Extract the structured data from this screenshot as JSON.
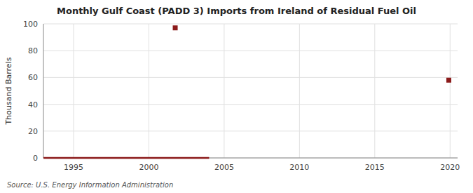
{
  "chart_data": {
    "type": "line",
    "title": "Monthly Gulf Coast (PADD 3) Imports from Ireland of Residual Fuel Oil",
    "y_label": "Thousand Barrels",
    "source": "Source: U.S. Energy Information Administration",
    "xlim": [
      1993.0,
      2020.5
    ],
    "ylim": [
      0,
      100
    ],
    "xticks": [
      1995,
      2000,
      2005,
      2010,
      2015,
      2020
    ],
    "yticks": [
      0,
      20,
      40,
      60,
      80,
      100
    ],
    "grid": true,
    "series": [
      {
        "type": "line",
        "color": "#8b1a1a",
        "line_style": "solid",
        "x": [
          1993.0,
          2004.0
        ],
        "values": [
          0,
          0
        ]
      },
      {
        "type": "scatter",
        "color": "#8b1a1a",
        "marker": "square",
        "x": [
          2001.75,
          2019.917
        ],
        "values": [
          97,
          58
        ]
      }
    ]
  }
}
